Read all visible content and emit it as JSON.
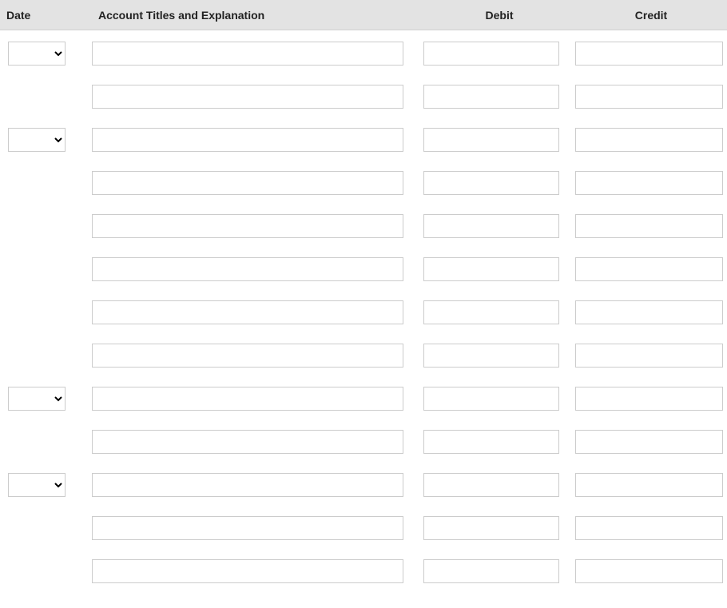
{
  "table": {
    "headers": {
      "date": "Date",
      "account": "Account Titles and Explanation",
      "debit": "Debit",
      "credit": "Credit"
    }
  },
  "colors": {
    "header_bg": "#e3e3e3",
    "border": "#cccccc",
    "text": "#222222"
  },
  "entries": [
    {
      "showDate": true,
      "dateValue": "",
      "account": "",
      "debit": "",
      "credit": ""
    },
    {
      "showDate": false,
      "account": "",
      "debit": "",
      "credit": ""
    },
    {
      "showDate": true,
      "dateValue": "",
      "account": "",
      "debit": "",
      "credit": ""
    },
    {
      "showDate": false,
      "account": "",
      "debit": "",
      "credit": ""
    },
    {
      "showDate": false,
      "account": "",
      "debit": "",
      "credit": ""
    },
    {
      "showDate": false,
      "account": "",
      "debit": "",
      "credit": ""
    },
    {
      "showDate": false,
      "account": "",
      "debit": "",
      "credit": ""
    },
    {
      "showDate": false,
      "account": "",
      "debit": "",
      "credit": ""
    },
    {
      "showDate": true,
      "dateValue": "",
      "account": "",
      "debit": "",
      "credit": ""
    },
    {
      "showDate": false,
      "account": "",
      "debit": "",
      "credit": ""
    },
    {
      "showDate": true,
      "dateValue": "",
      "account": "",
      "debit": "",
      "credit": ""
    },
    {
      "showDate": false,
      "account": "",
      "debit": "",
      "credit": ""
    },
    {
      "showDate": false,
      "account": "",
      "debit": "",
      "credit": ""
    }
  ]
}
